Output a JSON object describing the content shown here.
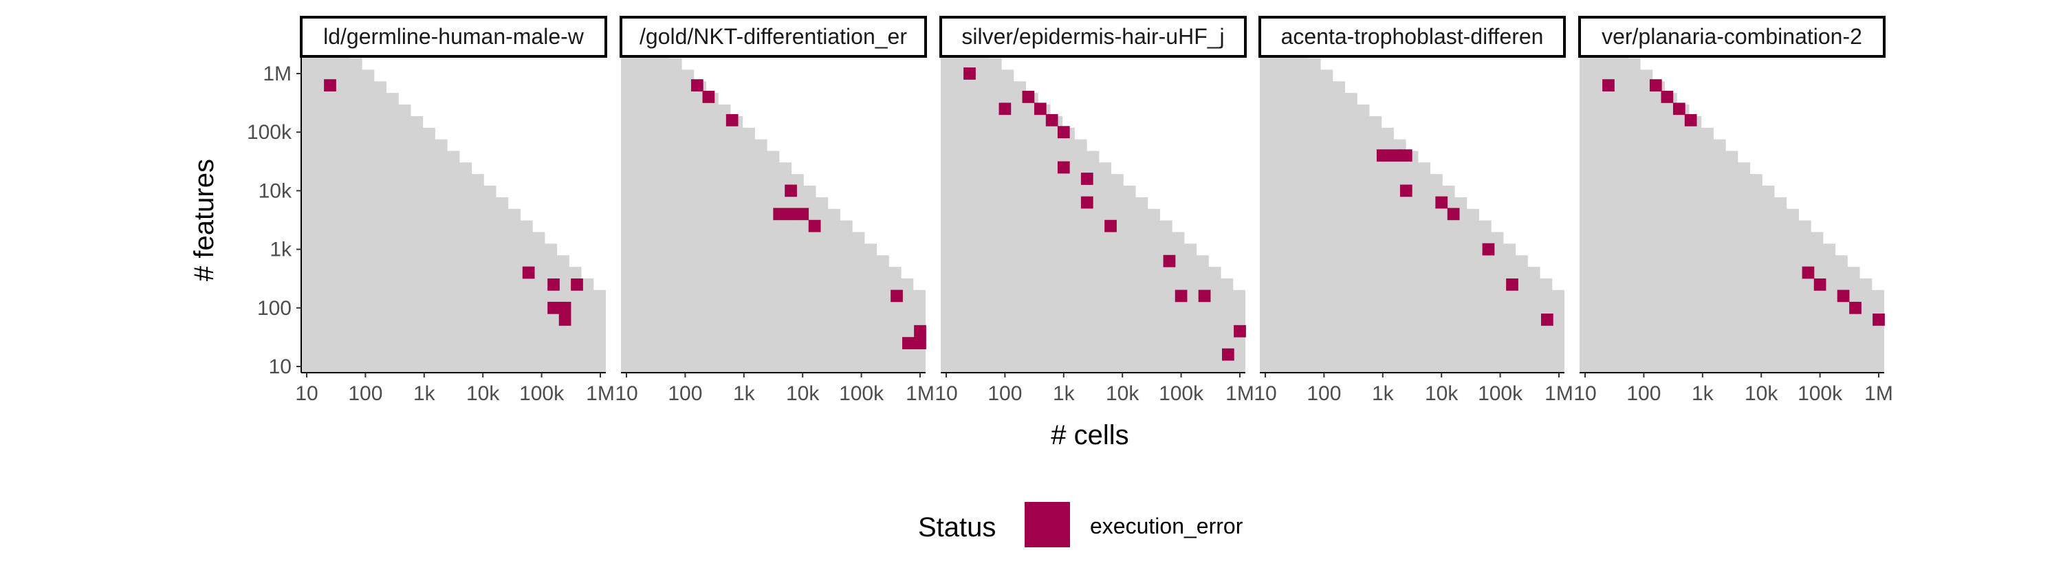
{
  "chart_data": {
    "type": "heatmap",
    "xlabel": "# cells",
    "ylabel": "# features",
    "x_scale": "log10",
    "y_scale": "log10",
    "xlim": [
      10,
      1000000
    ],
    "ylim": [
      10,
      1000000
    ],
    "x_ticks": [
      {
        "value": 10,
        "label": "10"
      },
      {
        "value": 100,
        "label": "100"
      },
      {
        "value": 1000,
        "label": "1k"
      },
      {
        "value": 10000,
        "label": "10k"
      },
      {
        "value": 100000,
        "label": "100k"
      },
      {
        "value": 1000000,
        "label": "1M"
      }
    ],
    "y_ticks": [
      {
        "value": 10,
        "label": "10"
      },
      {
        "value": 100,
        "label": "100"
      },
      {
        "value": 1000,
        "label": "1k"
      },
      {
        "value": 10000,
        "label": "10k"
      },
      {
        "value": 100000,
        "label": "100k"
      },
      {
        "value": 1000000,
        "label": "1M"
      }
    ],
    "grid": false,
    "background_color": "#D3D3D3",
    "legend": {
      "title": "Status",
      "position": "bottom",
      "entries": [
        {
          "label": "execution_error",
          "color": "#A1004A"
        }
      ]
    },
    "panels": [
      {
        "title": "ld/germline-human-male-w",
        "points": [
          {
            "x": 25,
            "y": 630000
          },
          {
            "x": 60000,
            "y": 400
          },
          {
            "x": 160000,
            "y": 250
          },
          {
            "x": 400000,
            "y": 250
          },
          {
            "x": 160000,
            "y": 100
          },
          {
            "x": 250000,
            "y": 100
          },
          {
            "x": 250000,
            "y": 63
          }
        ]
      },
      {
        "title": "/gold/NKT-differentiation_er",
        "points": [
          {
            "x": 160,
            "y": 630000
          },
          {
            "x": 250,
            "y": 400000
          },
          {
            "x": 630,
            "y": 160000
          },
          {
            "x": 6300,
            "y": 10000
          },
          {
            "x": 4000,
            "y": 4000
          },
          {
            "x": 6300,
            "y": 4000
          },
          {
            "x": 10000,
            "y": 4000
          },
          {
            "x": 16000,
            "y": 2500
          },
          {
            "x": 400000,
            "y": 160
          },
          {
            "x": 1000000,
            "y": 40
          },
          {
            "x": 630000,
            "y": 25
          },
          {
            "x": 1000000,
            "y": 25
          }
        ]
      },
      {
        "title": "silver/epidermis-hair-uHF_j",
        "points": [
          {
            "x": 25,
            "y": 1000000
          },
          {
            "x": 100,
            "y": 250000
          },
          {
            "x": 250,
            "y": 400000
          },
          {
            "x": 400,
            "y": 250000
          },
          {
            "x": 630,
            "y": 160000
          },
          {
            "x": 1000,
            "y": 100000
          },
          {
            "x": 1000,
            "y": 25000
          },
          {
            "x": 2500,
            "y": 16000
          },
          {
            "x": 2500,
            "y": 6300
          },
          {
            "x": 6300,
            "y": 2500
          },
          {
            "x": 63000,
            "y": 630
          },
          {
            "x": 100000,
            "y": 160
          },
          {
            "x": 250000,
            "y": 160
          },
          {
            "x": 1000000,
            "y": 40
          },
          {
            "x": 630000,
            "y": 16
          }
        ]
      },
      {
        "title": "acenta-trophoblast-differen",
        "points": [
          {
            "x": 1000,
            "y": 40000
          },
          {
            "x": 1600,
            "y": 40000
          },
          {
            "x": 2500,
            "y": 40000
          },
          {
            "x": 2500,
            "y": 10000
          },
          {
            "x": 10000,
            "y": 6300
          },
          {
            "x": 16000,
            "y": 4000
          },
          {
            "x": 63000,
            "y": 1000
          },
          {
            "x": 160000,
            "y": 250
          },
          {
            "x": 630000,
            "y": 63
          }
        ]
      },
      {
        "title": "ver/planaria-combination-2",
        "points": [
          {
            "x": 25,
            "y": 630000
          },
          {
            "x": 160,
            "y": 630000
          },
          {
            "x": 250,
            "y": 400000
          },
          {
            "x": 400,
            "y": 250000
          },
          {
            "x": 630,
            "y": 160000
          },
          {
            "x": 63000,
            "y": 400
          },
          {
            "x": 100000,
            "y": 250
          },
          {
            "x": 250000,
            "y": 160
          },
          {
            "x": 400000,
            "y": 100
          },
          {
            "x": 1000000,
            "y": 63
          }
        ]
      }
    ]
  }
}
